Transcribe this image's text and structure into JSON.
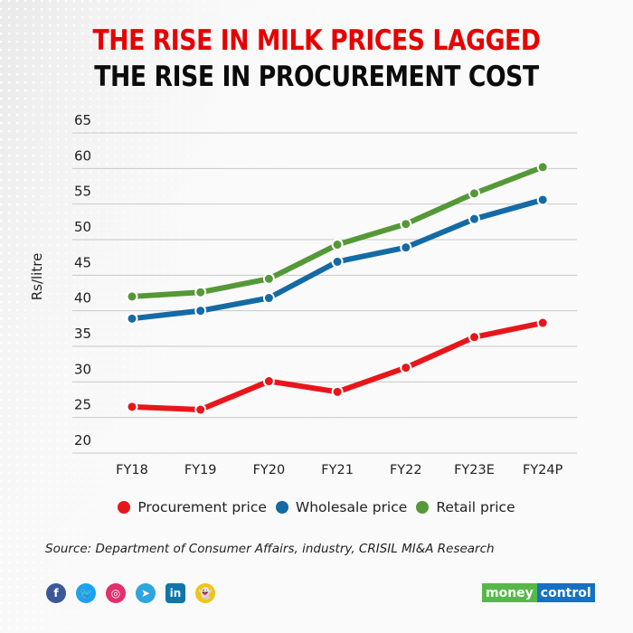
{
  "title": {
    "line1": "THE RISE IN MILK PRICES LAGGED",
    "line2": "THE RISE IN PROCUREMENT COST",
    "line1_color": "#e60000",
    "line2_color": "#0b0b0b"
  },
  "chart_data": {
    "type": "line",
    "title": "THE RISE IN MILK PRICES LAGGED THE RISE IN PROCUREMENT COST",
    "xlabel": "",
    "ylabel": "Rs/litre",
    "categories": [
      "FY18",
      "FY19",
      "FY20",
      "FY21",
      "FY22",
      "FY23E",
      "FY24P"
    ],
    "yticks": [
      20,
      25,
      30,
      35,
      40,
      45,
      50,
      55,
      60,
      65
    ],
    "ylim": [
      20,
      65
    ],
    "grid": true,
    "legend_position": "bottom",
    "series": [
      {
        "name": "Procurement price",
        "color": "#e8161a",
        "values": [
          26.5,
          26.1,
          30.1,
          28.6,
          32.0,
          36.3,
          38.3
        ]
      },
      {
        "name": "Wholesale price",
        "color": "#146aa5",
        "values": [
          38.9,
          40.0,
          41.8,
          46.9,
          48.9,
          52.9,
          55.6
        ]
      },
      {
        "name": "Retail price",
        "color": "#559838",
        "values": [
          42.0,
          42.6,
          44.5,
          49.3,
          52.2,
          56.5,
          60.2
        ]
      }
    ]
  },
  "source": "Source: Department of Consumer Affairs, industry, CRISIL MI&A Research",
  "social": [
    {
      "icon": "facebook-icon",
      "glyph": "f",
      "color": "#3b5998"
    },
    {
      "icon": "twitter-icon",
      "glyph": "🐦",
      "color": "#1da1f2"
    },
    {
      "icon": "instagram-icon",
      "glyph": "◎",
      "color": "#e1306c"
    },
    {
      "icon": "telegram-icon",
      "glyph": "➤",
      "color": "#2ca5e0"
    },
    {
      "icon": "linkedin-icon",
      "glyph": "in",
      "color": "#0e76a8"
    },
    {
      "icon": "snapchat-icon",
      "glyph": "👻",
      "color": "#f0c419"
    }
  ],
  "logo": {
    "part1": "money",
    "part2": "control"
  }
}
